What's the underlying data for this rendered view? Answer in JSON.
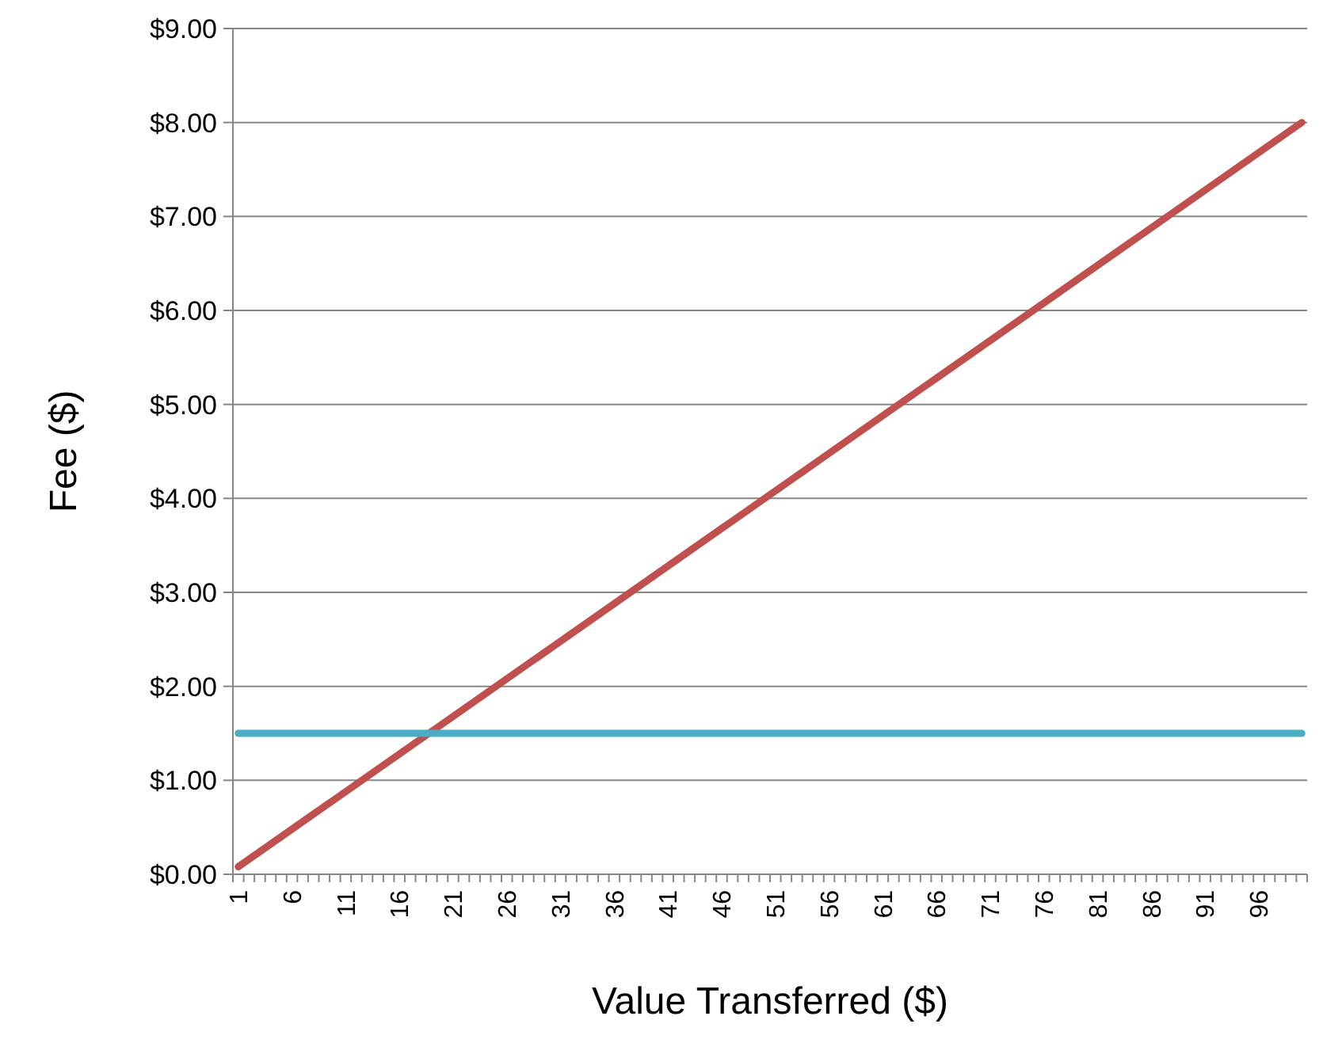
{
  "chart_data": {
    "type": "line",
    "xlabel": "Value Transferred ($)",
    "ylabel": "Fee ($)",
    "categories": [
      "1",
      null,
      null,
      null,
      null,
      "6",
      null,
      null,
      null,
      null,
      "11",
      null,
      null,
      null,
      null,
      "16",
      null,
      null,
      null,
      null,
      "21",
      null,
      null,
      null,
      null,
      "26",
      null,
      null,
      null,
      null,
      "31",
      null,
      null,
      null,
      null,
      "36",
      null,
      null,
      null,
      null,
      "41",
      null,
      null,
      null,
      null,
      "46",
      null,
      null,
      null,
      null,
      "51",
      null,
      null,
      null,
      null,
      "56",
      null,
      null,
      null,
      null,
      "61",
      null,
      null,
      null,
      null,
      "66",
      null,
      null,
      null,
      null,
      "71",
      null,
      null,
      null,
      null,
      "76",
      null,
      null,
      null,
      null,
      "81",
      null,
      null,
      null,
      null,
      "86",
      null,
      null,
      null,
      null,
      "91",
      null,
      null,
      null,
      null,
      "96",
      null,
      null,
      null,
      null
    ],
    "series": [
      {
        "color": "#c0504d",
        "values": [
          0.08,
          0.16,
          0.24,
          0.32,
          0.4,
          0.48,
          0.56,
          0.64,
          0.72,
          0.8,
          0.88,
          0.96,
          1.04,
          1.12,
          1.2,
          1.28,
          1.36,
          1.44,
          1.52,
          1.6,
          1.68,
          1.76,
          1.84,
          1.92,
          2,
          2.08,
          2.16,
          2.24,
          2.32,
          2.4,
          2.48,
          2.56,
          2.64,
          2.72,
          2.8,
          2.88,
          2.96,
          3.04,
          3.12,
          3.2,
          3.28,
          3.36,
          3.44,
          3.52,
          3.6,
          3.68,
          3.76,
          3.84,
          3.92,
          4,
          4.08,
          4.16,
          4.24,
          4.32,
          4.4,
          4.48,
          4.56,
          4.64,
          4.72,
          4.8,
          4.88,
          4.96,
          5.04,
          5.12,
          5.2,
          5.28,
          5.36,
          5.44,
          5.52,
          5.6,
          5.68,
          5.76,
          5.84,
          5.92,
          6,
          6.08,
          6.16,
          6.24,
          6.32,
          6.4,
          6.48,
          6.56,
          6.64,
          6.72,
          6.8,
          6.88,
          6.96,
          7.04,
          7.12,
          7.2,
          7.28,
          7.36,
          7.44,
          7.52,
          7.6,
          7.68,
          7.76,
          7.84,
          7.92,
          8
        ]
      },
      {
        "color": "#4bacc6",
        "values": [
          1.5,
          1.5,
          1.5,
          1.5,
          1.5,
          1.5,
          1.5,
          1.5,
          1.5,
          1.5,
          1.5,
          1.5,
          1.5,
          1.5,
          1.5,
          1.5,
          1.5,
          1.5,
          1.5,
          1.5,
          1.5,
          1.5,
          1.5,
          1.5,
          1.5,
          1.5,
          1.5,
          1.5,
          1.5,
          1.5,
          1.5,
          1.5,
          1.5,
          1.5,
          1.5,
          1.5,
          1.5,
          1.5,
          1.5,
          1.5,
          1.5,
          1.5,
          1.5,
          1.5,
          1.5,
          1.5,
          1.5,
          1.5,
          1.5,
          1.5,
          1.5,
          1.5,
          1.5,
          1.5,
          1.5,
          1.5,
          1.5,
          1.5,
          1.5,
          1.5,
          1.5,
          1.5,
          1.5,
          1.5,
          1.5,
          1.5,
          1.5,
          1.5,
          1.5,
          1.5,
          1.5,
          1.5,
          1.5,
          1.5,
          1.5,
          1.5,
          1.5,
          1.5,
          1.5,
          1.5,
          1.5,
          1.5,
          1.5,
          1.5,
          1.5,
          1.5,
          1.5,
          1.5,
          1.5,
          1.5,
          1.5,
          1.5,
          1.5,
          1.5,
          1.5,
          1.5,
          1.5,
          1.5,
          1.5,
          1.5
        ]
      }
    ],
    "ylim": [
      0,
      9
    ],
    "yticks": [
      {
        "value": 0,
        "label": "$0.00"
      },
      {
        "value": 1,
        "label": "$1.00"
      },
      {
        "value": 2,
        "label": "$2.00"
      },
      {
        "value": 3,
        "label": "$3.00"
      },
      {
        "value": 4,
        "label": "$4.00"
      },
      {
        "value": 5,
        "label": "$5.00"
      },
      {
        "value": 6,
        "label": "$6.00"
      },
      {
        "value": 7,
        "label": "$7.00"
      },
      {
        "value": 8,
        "label": "$8.00"
      },
      {
        "value": 9,
        "label": "$9.00"
      }
    ],
    "grid": "y",
    "marker": "none",
    "line_style": "solid"
  }
}
